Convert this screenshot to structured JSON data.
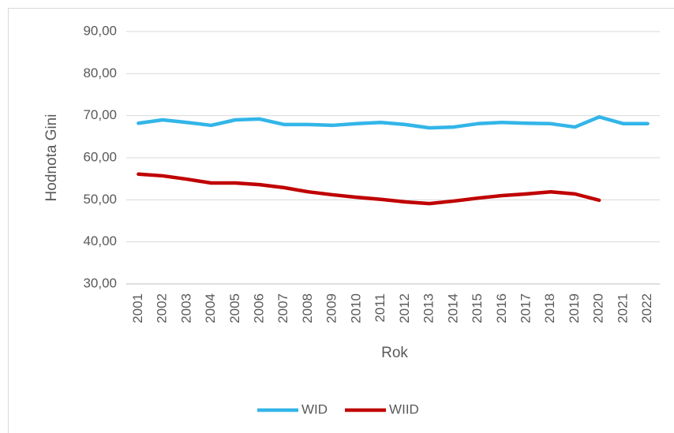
{
  "chart_data": {
    "type": "line",
    "categories": [
      "2001",
      "2002",
      "2003",
      "2004",
      "2005",
      "2006",
      "2007",
      "2008",
      "2009",
      "2010",
      "2011",
      "2012",
      "2013",
      "2014",
      "2015",
      "2016",
      "2017",
      "2018",
      "2019",
      "2020",
      "2021",
      "2022"
    ],
    "series": [
      {
        "name": "WID",
        "color": "#33b5e8",
        "values": [
          68.2,
          69.0,
          68.4,
          67.7,
          69.0,
          69.2,
          67.9,
          67.9,
          67.7,
          68.1,
          68.4,
          67.9,
          67.1,
          67.3,
          68.1,
          68.4,
          68.2,
          68.1,
          67.3,
          69.7,
          68.1,
          68.1
        ]
      },
      {
        "name": "WIID",
        "color": "#c00000",
        "values": [
          56.1,
          55.7,
          54.9,
          54.0,
          54.0,
          53.6,
          52.9,
          51.9,
          51.2,
          50.6,
          50.1,
          49.5,
          49.1,
          49.7,
          50.4,
          51.0,
          51.4,
          51.9,
          51.4,
          49.9,
          null,
          null
        ]
      }
    ],
    "xlabel": "Rok",
    "ylabel": "Hodnota Gini",
    "ylim": [
      30,
      90
    ],
    "yticks": [
      {
        "value": 30,
        "label": "30,00"
      },
      {
        "value": 40,
        "label": "40,00"
      },
      {
        "value": 50,
        "label": "50,00"
      },
      {
        "value": 60,
        "label": "60,00"
      },
      {
        "value": 70,
        "label": "70,00"
      },
      {
        "value": 80,
        "label": "80,00"
      },
      {
        "value": 90,
        "label": "90,00"
      }
    ],
    "grid": true,
    "legend": "bottom"
  }
}
